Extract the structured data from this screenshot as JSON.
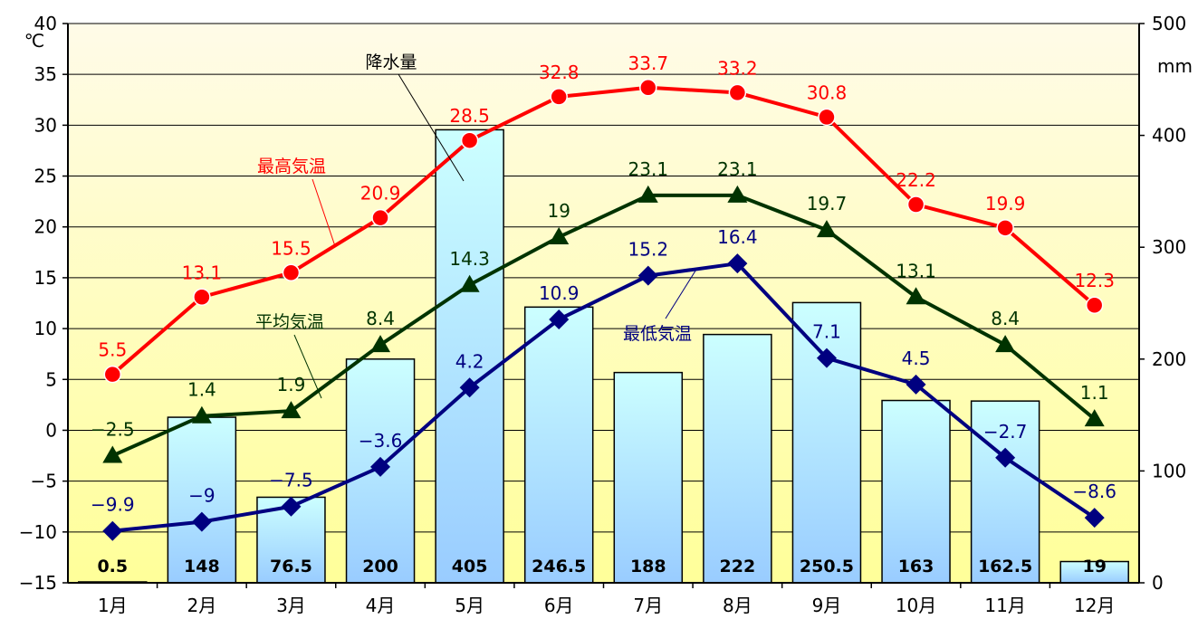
{
  "chart_data": {
    "type": "bar+line",
    "categories": [
      "1月",
      "2月",
      "3月",
      "4月",
      "5月",
      "6月",
      "7月",
      "8月",
      "9月",
      "10月",
      "11月",
      "12月"
    ],
    "left_axis": {
      "unit": "℃",
      "min": -15,
      "max": 40,
      "ticks": [
        -15,
        -10,
        -5,
        0,
        5,
        10,
        15,
        20,
        25,
        30,
        35,
        40
      ]
    },
    "right_axis": {
      "unit": "mm",
      "min": 0,
      "max": 500,
      "ticks": [
        0,
        100,
        200,
        300,
        400,
        500
      ]
    },
    "bars": {
      "name": "降水量",
      "axis": "right",
      "values": [
        0.5,
        148,
        76.5,
        200,
        405,
        246.5,
        188,
        222,
        250.5,
        163,
        162.5,
        19
      ],
      "labels": [
        "0.5",
        "148",
        "76.5",
        "200",
        "405",
        "246.5",
        "188",
        "222",
        "250.5",
        "163",
        "162.5",
        "19"
      ]
    },
    "series": [
      {
        "name": "最高気温",
        "color": "#ff0000",
        "marker": "circle",
        "values": [
          5.5,
          13.1,
          15.5,
          20.9,
          28.5,
          32.8,
          33.7,
          33.2,
          30.8,
          22.2,
          19.9,
          12.3
        ],
        "labels": [
          "5.5",
          "13.1",
          "15.5",
          "20.9",
          "28.5",
          "32.8",
          "33.7",
          "33.2",
          "30.8",
          "22.2",
          "19.9",
          "12.3"
        ]
      },
      {
        "name": "平均気温",
        "color": "#003300",
        "marker": "triangle",
        "values": [
          -2.5,
          1.4,
          1.9,
          8.4,
          14.3,
          19,
          23.1,
          23.1,
          19.7,
          13.1,
          8.4,
          1.1
        ],
        "labels": [
          "−2.5",
          "1.4",
          "1.9",
          "8.4",
          "14.3",
          "19",
          "23.1",
          "23.1",
          "19.7",
          "13.1",
          "8.4",
          "1.1"
        ]
      },
      {
        "name": "最低気温",
        "color": "#000080",
        "marker": "diamond",
        "values": [
          -9.9,
          -9,
          -7.5,
          -3.6,
          4.2,
          10.9,
          15.2,
          16.4,
          7.1,
          4.5,
          -2.7,
          -8.6
        ],
        "labels": [
          "−9.9",
          "−9",
          "−7.5",
          "−3.6",
          "4.2",
          "10.9",
          "15.2",
          "16.4",
          "7.1",
          "4.5",
          "−2.7",
          "−8.6"
        ]
      }
    ],
    "annotations": [
      "降水量",
      "最高気温",
      "平均気温",
      "最低気温"
    ],
    "colors": {
      "bar_fill_top": "#ccffff",
      "bar_fill_bottom": "#99ccff",
      "bg_top": "#fff9e0",
      "bg_bottom": "#ffff99"
    }
  }
}
